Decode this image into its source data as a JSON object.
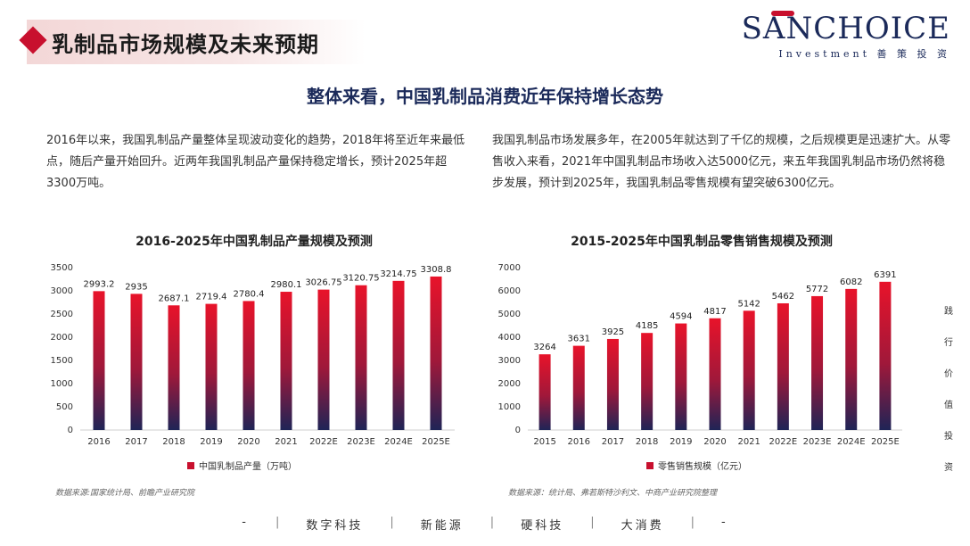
{
  "page": {
    "title": "乳制品市场规模及未来预期",
    "logo": {
      "main": "SANCHOICE",
      "sub": "Investment 善 策 投 资"
    },
    "headline": "整体来看，中国乳制品消费近年保持增长态势",
    "left_paragraph": "2016年以来，我国乳制品产量整体呈现波动变化的趋势，2018年将至近年来最低点，随后产量开始回升。近两年我国乳制品产量保持稳定增长，预计2025年超3300万吨。",
    "right_paragraph": "我国乳制品市场发展多年，在2005年就达到了千亿的规模，之后规模更是迅速扩大。从零售收入来看，2021年中国乳制品市场收入达5000亿元，来五年我国乳制品市场仍然将稳步发展，预计到2025年，我国乳制品零售规模有望突破6300亿元。",
    "side_text": [
      "践",
      "行",
      "价",
      "值",
      "投",
      "资"
    ],
    "footer": [
      "-",
      "数字科技",
      "新能源",
      "硬科技",
      "大消费",
      "-"
    ]
  },
  "colors": {
    "accent": "#c8102e",
    "navy": "#1b2a5a"
  },
  "chart_data": [
    {
      "type": "bar",
      "title": "2016-2025年中国乳制品产量规模及预测",
      "categories": [
        "2016",
        "2017",
        "2018",
        "2019",
        "2020",
        "2021",
        "2022E",
        "2023E",
        "2024E",
        "2025E"
      ],
      "series": [
        {
          "name": "中国乳制品产量（万吨）",
          "values": [
            2993.2,
            2935,
            2687.1,
            2719.4,
            2780.4,
            2980.1,
            3026.75,
            3120.75,
            3214.75,
            3308.8
          ]
        }
      ],
      "data_labels": [
        "2993.2",
        "2935",
        "2687.1",
        "2719.4",
        "2780.4",
        "2980.1",
        "3026.75",
        "3120.75",
        "3214.75",
        "3308.8"
      ],
      "ylim": [
        0,
        3500
      ],
      "yticks": [
        "0",
        "500",
        "1000",
        "1500",
        "2000",
        "2500",
        "3000",
        "3500"
      ],
      "legend_position": "bottom",
      "grid": false,
      "source": "数据来源:国家统计局、前瞻产业研究院"
    },
    {
      "type": "bar",
      "title": "2015-2025年中国乳制品零售销售规模及预测",
      "categories": [
        "2015",
        "2016",
        "2017",
        "2018",
        "2019",
        "2020",
        "2021",
        "2022E",
        "2023E",
        "2024E",
        "2025E"
      ],
      "series": [
        {
          "name": "零售销售规模（亿元）",
          "values": [
            3264,
            3631,
            3925,
            4185,
            4594,
            4817,
            5142,
            5462,
            5772,
            6082,
            6391
          ]
        }
      ],
      "data_labels": [
        "3264",
        "3631",
        "3925",
        "4185",
        "4594",
        "4817",
        "5142",
        "5462",
        "5772",
        "6082",
        "6391"
      ],
      "ylim": [
        0,
        7000
      ],
      "yticks": [
        "0",
        "1000",
        "2000",
        "3000",
        "4000",
        "5000",
        "6000",
        "7000"
      ],
      "legend_position": "bottom",
      "grid": false,
      "source": "数据来源：统计局、弗若斯特沙利文、中商产业研究院整理"
    }
  ]
}
